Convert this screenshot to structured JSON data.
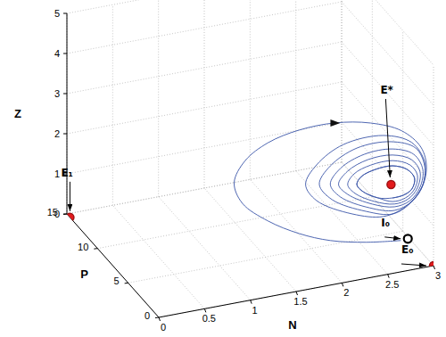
{
  "chart_data": {
    "type": "line3d",
    "xlabel": "N",
    "ylabel": "P",
    "zlabel": "Z",
    "xlim": [
      0,
      3
    ],
    "ylim": [
      0,
      15
    ],
    "zlim": [
      0,
      5
    ],
    "xticks": [
      0,
      0.5,
      1,
      1.5,
      2,
      2.5,
      3
    ],
    "yticks": [
      0,
      5,
      10,
      15
    ],
    "zticks": [
      0,
      1,
      2,
      3,
      4,
      5
    ],
    "grid": true,
    "series": [
      {
        "type": "line",
        "color": "#3a55a8",
        "x": [
          2.71,
          2.33,
          1.94,
          1.6,
          1.26,
          0.98,
          0.89,
          1.01,
          1.26,
          1.6,
          1.99,
          2.38,
          2.72,
          2.93,
          2.99,
          2.93,
          2.76,
          2.52,
          2.18,
          1.79,
          1.67,
          1.79,
          2.08,
          2.52,
          2.83,
          2.97,
          2.95,
          2.81,
          2.62,
          2.33,
          1.96,
          1.82,
          1.94,
          2.23,
          2.6,
          2.87,
          2.97,
          2.95,
          2.83,
          2.64,
          2.37,
          2.05,
          1.94,
          2.05,
          2.31,
          2.62,
          2.85,
          2.95,
          2.92,
          2.81,
          2.64,
          2.4,
          2.13,
          2.03,
          2.13,
          2.35,
          2.62,
          2.83,
          2.92,
          2.89,
          2.79,
          2.64,
          2.42,
          2.21,
          2.13,
          2.2,
          2.38,
          2.62,
          2.81,
          2.89,
          2.86,
          2.76,
          2.62,
          2.46,
          2.3,
          2.23,
          2.28,
          2.43,
          2.62,
          2.78,
          2.86,
          2.83,
          2.74,
          2.62,
          2.46,
          2.3,
          2.23,
          2.28,
          2.43,
          2.62,
          2.78,
          2.86,
          2.83,
          2.74,
          2.62
        ],
        "y": [
          1,
          1,
          1,
          1,
          1,
          1,
          1,
          1,
          1,
          1,
          1,
          1,
          1,
          1,
          1,
          1,
          1,
          1,
          1,
          1,
          1,
          1,
          1,
          1,
          1,
          1,
          1,
          1,
          1,
          1,
          1,
          1,
          1,
          1,
          1,
          1,
          1,
          1,
          1,
          1,
          1,
          1,
          1,
          1,
          1,
          1,
          1,
          1,
          1,
          1,
          1,
          1,
          1,
          1,
          1,
          1,
          1,
          1,
          1,
          1,
          1,
          1,
          1,
          1,
          1,
          1,
          1,
          1,
          1,
          1,
          1,
          1,
          1,
          1,
          1,
          1,
          1,
          1,
          1,
          1,
          1,
          1,
          1,
          1,
          1,
          1,
          1,
          1,
          1,
          1,
          1,
          1,
          1,
          1,
          1
        ],
        "z": [
          0.58,
          0.7,
          0.91,
          1.23,
          1.69,
          2.25,
          2.8,
          3.3,
          3.64,
          3.81,
          3.82,
          3.65,
          3.31,
          2.81,
          2.28,
          1.77,
          1.4,
          1.26,
          1.47,
          1.97,
          2.42,
          2.86,
          3.24,
          3.28,
          2.97,
          2.42,
          1.87,
          1.46,
          1.28,
          1.47,
          1.92,
          2.36,
          2.77,
          3.09,
          3.09,
          2.82,
          2.33,
          1.85,
          1.5,
          1.36,
          1.54,
          1.95,
          2.31,
          2.66,
          2.9,
          2.9,
          2.67,
          2.25,
          1.82,
          1.53,
          1.45,
          1.62,
          1.98,
          2.27,
          2.56,
          2.75,
          2.75,
          2.54,
          2.2,
          1.81,
          1.58,
          1.52,
          1.68,
          1.97,
          2.22,
          2.46,
          2.6,
          2.61,
          2.42,
          2.14,
          1.8,
          1.62,
          1.59,
          1.75,
          1.97,
          2.18,
          2.36,
          2.47,
          2.48,
          2.32,
          2.07,
          1.81,
          1.7,
          1.68,
          1.75,
          1.97,
          2.18,
          2.36,
          2.47,
          2.48,
          2.32,
          2.07,
          1.81,
          1.7,
          1.68
        ]
      }
    ],
    "points": [
      {
        "label": "E₁",
        "x": 0,
        "y": 14.5,
        "z": 0,
        "color": "#e31a1c",
        "marker": "circle"
      },
      {
        "label": "E*",
        "x": 2.67,
        "y": 2,
        "z": 1.82,
        "color": "#e31a1c",
        "marker": "circle"
      },
      {
        "label": "I₀",
        "x": 2.82,
        "y": 1.5,
        "z": 0.49,
        "color": "#000000",
        "marker": "ring"
      },
      {
        "label": "E₀",
        "x": 3,
        "y": 0,
        "z": 0,
        "color": "#e31a1c",
        "marker": "circle"
      }
    ]
  }
}
